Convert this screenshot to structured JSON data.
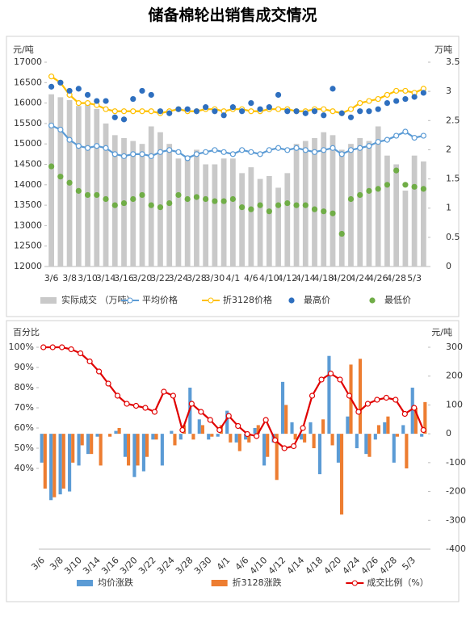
{
  "chart_data": [
    {
      "type": "combo",
      "title": "储备棉轮出销售成交情况",
      "y_label": "元/吨",
      "y2_label": "万吨",
      "categories": [
        "3/6",
        null,
        "3/8",
        null,
        "3/10",
        null,
        "3/14",
        null,
        "3/16",
        null,
        "3/20",
        null,
        "3/22",
        null,
        "3/24",
        null,
        "3/28",
        null,
        "3/30",
        null,
        "4/1",
        null,
        "4/6",
        null,
        "4/10",
        null,
        "4/12",
        null,
        "4/14",
        null,
        "4/18",
        null,
        "4/20",
        null,
        "4/24",
        null,
        "4/26",
        null,
        "4/28",
        null,
        "5/3",
        null
      ],
      "ylim": [
        12000,
        17000
      ],
      "yticks": [
        12000,
        12500,
        13000,
        13500,
        14000,
        14500,
        15000,
        15500,
        16000,
        16500,
        17000
      ],
      "y2lim": [
        0,
        3.5
      ],
      "y2ticks": [
        0,
        0.5,
        1,
        1.5,
        2,
        2.5,
        3,
        3.5
      ],
      "series": [
        {
          "name": "实际成交 （万吨）",
          "color": "#c9c9c9",
          "mark": "bar",
          "axis": "y2",
          "values": [
            2.95,
            2.9,
            2.85,
            2.75,
            2.8,
            2.7,
            2.45,
            2.25,
            2.2,
            2.15,
            2.1,
            2.4,
            2.3,
            2.1,
            1.85,
            1.9,
            2.0,
            1.75,
            1.75,
            1.85,
            1.85,
            1.6,
            1.7,
            1.5,
            1.55,
            1.35,
            1.6,
            2.1,
            2.15,
            2.2,
            2.3,
            2.25,
            2.0,
            2.1,
            2.2,
            2.15,
            2.4,
            1.9,
            1.75,
            1.3,
            1.9,
            1.8
          ]
        },
        {
          "name": "平均价格",
          "color": "#5b9bd5",
          "mark": "line",
          "values": [
            15450,
            15350,
            15100,
            14950,
            14900,
            14950,
            14900,
            14750,
            14700,
            14750,
            14750,
            14700,
            14800,
            14850,
            14800,
            14650,
            14750,
            14800,
            14850,
            14800,
            14750,
            14850,
            14800,
            14750,
            14850,
            14900,
            14850,
            14900,
            14850,
            14800,
            14850,
            14900,
            14750,
            14850,
            14900,
            14950,
            15050,
            15100,
            15200,
            15300,
            15150,
            15200
          ]
        },
        {
          "name": "折3128价格",
          "color": "#ffc000",
          "mark": "line",
          "values": [
            16650,
            16500,
            16200,
            16000,
            16000,
            15950,
            15850,
            15800,
            15800,
            15800,
            15800,
            15800,
            15750,
            15800,
            15850,
            15800,
            15800,
            15850,
            15850,
            15800,
            15850,
            15850,
            15800,
            15800,
            15850,
            15850,
            15850,
            15800,
            15800,
            15850,
            15850,
            15800,
            15750,
            15850,
            16000,
            16050,
            16100,
            16200,
            16300,
            16300,
            16250,
            16350
          ]
        },
        {
          "name": "最高价",
          "color": "#2e6fbf",
          "mark": "dot",
          "values": [
            16400,
            16500,
            16300,
            16350,
            16200,
            16050,
            16050,
            15650,
            15600,
            16100,
            16300,
            16200,
            15800,
            15750,
            15850,
            15850,
            15800,
            15900,
            15800,
            15700,
            15900,
            15800,
            16000,
            15850,
            15900,
            16200,
            15800,
            15800,
            15750,
            15800,
            15700,
            16350,
            15750,
            15650,
            15800,
            15800,
            15850,
            16000,
            16050,
            16100,
            16150,
            16250
          ]
        },
        {
          "name": "最低价",
          "color": "#70ad47",
          "mark": "dot",
          "values": [
            14450,
            14200,
            14050,
            13850,
            13750,
            13750,
            13650,
            13500,
            13550,
            13650,
            13750,
            13500,
            13450,
            13550,
            13750,
            13650,
            13700,
            13650,
            13600,
            13600,
            13650,
            13450,
            13400,
            13500,
            13350,
            13500,
            13550,
            13500,
            13500,
            13400,
            13350,
            13300,
            12800,
            13650,
            13750,
            13850,
            13900,
            14000,
            14350,
            14000,
            13950,
            13900
          ]
        }
      ]
    },
    {
      "type": "combo",
      "y_label": "百分比",
      "y2_label": "元/吨",
      "categories": [
        "3/6",
        null,
        "3/8",
        null,
        "3/10",
        null,
        "3/14",
        null,
        "3/16",
        null,
        "3/20",
        null,
        "3/22",
        null,
        "3/24",
        null,
        "3/28",
        null,
        "3/30",
        null,
        "4/1",
        null,
        "4/6",
        null,
        "4/10",
        null,
        "4/12",
        null,
        "4/14",
        null,
        "4/18",
        null,
        "4/20",
        null,
        "4/24",
        null,
        "4/26",
        null,
        "4/28",
        null,
        "5/3",
        null
      ],
      "ylim": [
        0,
        100
      ],
      "yticks": [
        {
          "value": 40,
          "label": "40%"
        },
        {
          "value": 50,
          "label": "50%"
        },
        {
          "value": 60,
          "label": "60%"
        },
        {
          "value": 70,
          "label": "70%"
        },
        {
          "value": 80,
          "label": "80%"
        },
        {
          "value": 90,
          "label": "90%"
        },
        {
          "value": 100,
          "label": "100%"
        }
      ],
      "y2lim": [
        -400,
        300
      ],
      "y2ticks": [
        -400,
        -300,
        -200,
        -100,
        0,
        100,
        200,
        300
      ],
      "series": [
        {
          "name": "均价涨跌",
          "color": "#5b9bd5",
          "mark": "bar",
          "axis": "y2",
          "values": [
            -100,
            -230,
            -210,
            -200,
            -110,
            -70,
            -10,
            0,
            10,
            -80,
            -150,
            -130,
            -20,
            -110,
            10,
            -20,
            160,
            50,
            -20,
            -10,
            80,
            -30,
            -20,
            20,
            -110,
            -30,
            180,
            40,
            -20,
            40,
            -140,
            270,
            -100,
            60,
            -50,
            -70,
            -20,
            40,
            -100,
            30,
            160,
            -10
          ]
        },
        {
          "name": "折3128涨跌",
          "color": "#ed7d31",
          "mark": "bar",
          "axis": "y2",
          "values": [
            -190,
            -220,
            -190,
            -100,
            -40,
            -70,
            -110,
            -10,
            20,
            -110,
            -110,
            -80,
            -20,
            0,
            -40,
            30,
            -20,
            30,
            -10,
            30,
            -30,
            -60,
            -30,
            30,
            -80,
            -160,
            100,
            -20,
            -30,
            -50,
            50,
            -40,
            -280,
            240,
            260,
            -80,
            30,
            60,
            -10,
            -120,
            90,
            110
          ]
        },
        {
          "name": "成交比例（%）",
          "color": "#e00000",
          "mark": "line",
          "values": [
            100,
            100,
            100,
            99,
            97,
            93,
            88,
            82,
            76,
            72,
            71,
            70,
            68,
            78,
            76,
            59,
            72,
            68,
            64,
            59,
            66,
            61,
            57,
            56,
            64,
            54,
            50,
            51,
            60,
            76,
            84,
            87,
            84,
            76,
            68,
            72,
            74,
            75,
            74,
            67,
            70,
            59
          ]
        }
      ]
    }
  ]
}
